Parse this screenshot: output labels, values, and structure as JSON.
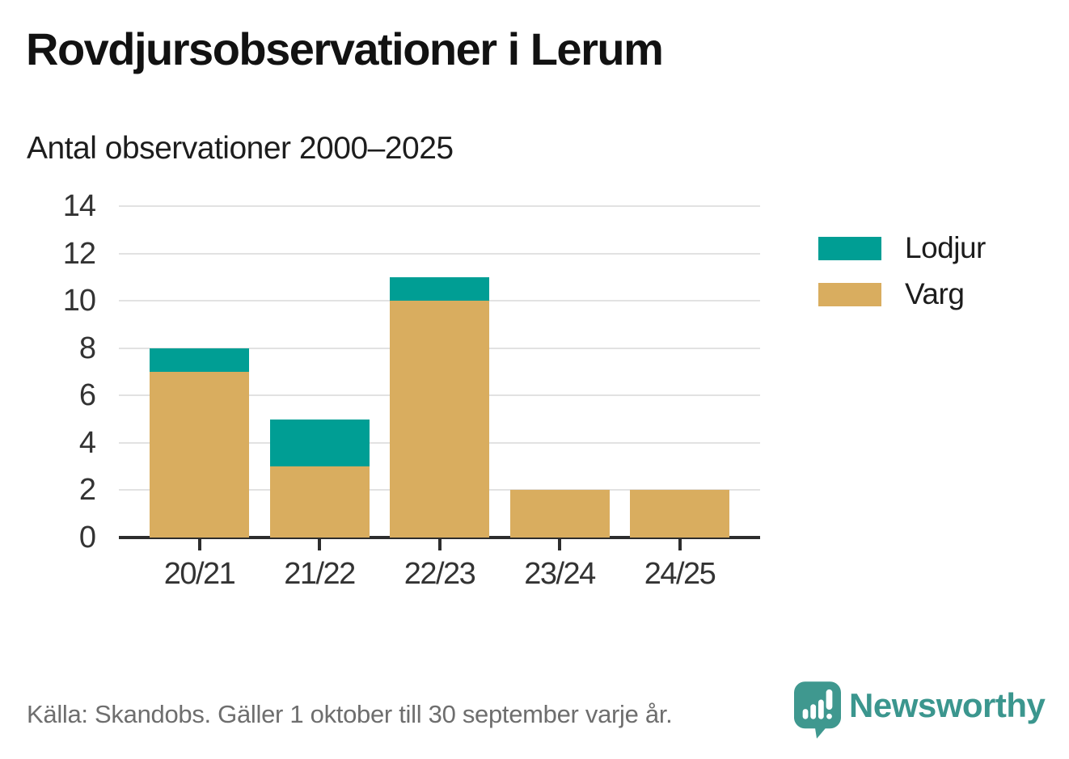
{
  "header": {
    "title": "Rovdjursobservationer i Lerum",
    "subtitle": "Antal observationer 2000–2025"
  },
  "legend": {
    "items": [
      {
        "label": "Lodjur",
        "color": "#009e94"
      },
      {
        "label": "Varg",
        "color": "#d9ad5f"
      }
    ]
  },
  "footer": {
    "source": "Källa: Skandobs. Gäller 1 oktober till 30 september varje år.",
    "brand": "Newsworthy",
    "brand_color": "#3b968e",
    "logo_icon": "newsworthy-chart-bubble-icon"
  },
  "colors": {
    "lodjur": "#009e94",
    "varg": "#d9ad5f",
    "grid": "#e2e2e2",
    "axis": "#2d2d2d",
    "tick_text": "#333333",
    "footer_text": "#6e6e6e"
  },
  "chart_data": {
    "type": "bar",
    "stacked": true,
    "title": "Rovdjursobservationer i Lerum",
    "subtitle": "Antal observationer 2000–2025",
    "categories": [
      "20/21",
      "21/22",
      "22/23",
      "23/24",
      "24/25"
    ],
    "series": [
      {
        "name": "Varg",
        "color": "#d9ad5f",
        "values": [
          7,
          3,
          10,
          2,
          2
        ]
      },
      {
        "name": "Lodjur",
        "color": "#009e94",
        "values": [
          1,
          2,
          1,
          0,
          0
        ]
      }
    ],
    "totals": [
      8,
      5,
      11,
      2,
      2
    ],
    "xlabel": "",
    "ylabel": "",
    "ylim": [
      0,
      14
    ],
    "yticks": [
      0,
      2,
      4,
      6,
      8,
      10,
      12,
      14
    ],
    "grid": true,
    "legend_position": "right"
  }
}
